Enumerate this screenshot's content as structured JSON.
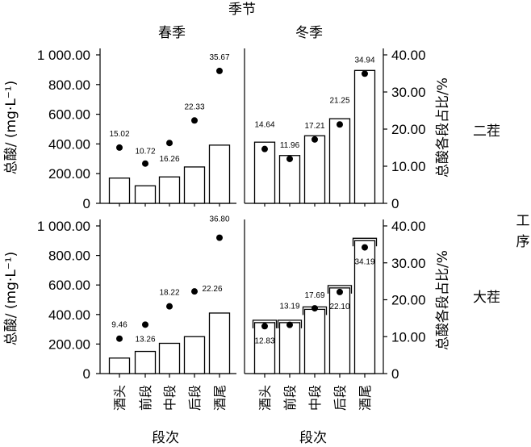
{
  "chart_data": {
    "type": "bar",
    "title": "季节",
    "column_labels": [
      "春季",
      "冬季"
    ],
    "row_labels": [
      "二茬",
      "大茬"
    ],
    "right_title": "工\n序",
    "xlabel": "段次",
    "ylabel_left": "总酸/ (mg·L⁻¹)",
    "ylabel_right": "总酸各段占比/%",
    "categories": [
      "酒头",
      "前段",
      "中段",
      "后段",
      "酒尾"
    ],
    "left_axis": {
      "ylim": [
        0,
        1000
      ],
      "ticks": [
        "0",
        "200.00",
        "400.00",
        "600.00",
        "800.00",
        "1 000.00"
      ],
      "tick_values": [
        0,
        200,
        400,
        600,
        800,
        1000
      ]
    },
    "right_axis": {
      "ylim": [
        0,
        40
      ],
      "ticks": [
        "0",
        "10.00",
        "20.00",
        "30.00",
        "40.00"
      ],
      "tick_values": [
        0,
        10,
        20,
        30,
        40
      ]
    },
    "panels": [
      {
        "season": "春季",
        "process": "二茬",
        "series": [
          {
            "name": "总酸",
            "axis": "left",
            "values": [
              170,
              118,
              178,
              245,
              392
            ]
          },
          {
            "name": "总酸各段占比",
            "axis": "right",
            "values": [
              15.02,
              10.72,
              16.26,
              22.33,
              35.67
            ],
            "labels": [
              "15.02",
              "10.72",
              "16.26",
              "22.33",
              "35.67"
            ]
          }
        ]
      },
      {
        "season": "冬季",
        "process": "二茬",
        "series": [
          {
            "name": "总酸",
            "axis": "left",
            "values": [
              412,
              322,
              455,
              570,
              895
            ]
          },
          {
            "name": "总酸各段占比",
            "axis": "right",
            "values": [
              14.64,
              11.96,
              17.21,
              21.25,
              34.94
            ],
            "labels": [
              "14.64",
              "11.96",
              "17.21",
              "21.25",
              "34.94"
            ]
          }
        ]
      },
      {
        "season": "春季",
        "process": "大茬",
        "series": [
          {
            "name": "总酸",
            "axis": "left",
            "values": [
              105,
              150,
              205,
              250,
              410
            ]
          },
          {
            "name": "总酸各段占比",
            "axis": "right",
            "values": [
              9.46,
              13.26,
              18.22,
              22.26,
              36.8
            ],
            "labels": [
              "9.46",
              "13.26",
              "18.22",
              "22.26",
              "36.80"
            ]
          }
        ]
      },
      {
        "season": "冬季",
        "process": "大茬",
        "series": [
          {
            "name": "总酸",
            "axis": "left",
            "values": [
              345,
              345,
              435,
              580,
              900
            ]
          },
          {
            "name": "总酸各段占比",
            "axis": "right",
            "values": [
              12.83,
              13.19,
              17.69,
              22.1,
              34.19
            ],
            "labels": [
              "12.83",
              "13.19",
              "17.69",
              "22.10",
              "34.19"
            ]
          }
        ]
      }
    ]
  }
}
